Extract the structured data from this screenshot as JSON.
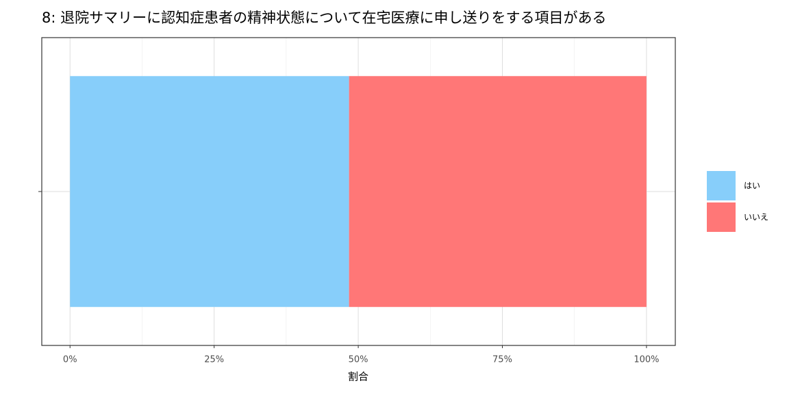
{
  "chart_data": {
    "type": "bar",
    "orientation": "horizontal",
    "stacked": true,
    "title": "8: 退院サマリーに認知症患者の精神状態について在宅医療に申し送りをする項目がある",
    "x_label": "割合",
    "categories": [
      null
    ],
    "series": [
      {
        "name": "はい",
        "color": "#87cefa",
        "values": [
          48.4
        ]
      },
      {
        "name": "いいえ",
        "color": "#ff7777",
        "values": [
          51.6
        ]
      }
    ],
    "xlim": [
      -4.9,
      105
    ],
    "xticks": [
      {
        "value": 0,
        "label": "0%"
      },
      {
        "value": 25,
        "label": "25%"
      },
      {
        "value": 50,
        "label": "50%"
      },
      {
        "value": 75,
        "label": "75%"
      },
      {
        "value": 100,
        "label": "100%"
      }
    ],
    "x_minor_grid": [
      12.5,
      37.5,
      62.5,
      87.5
    ],
    "grid": true,
    "legend": "right"
  }
}
